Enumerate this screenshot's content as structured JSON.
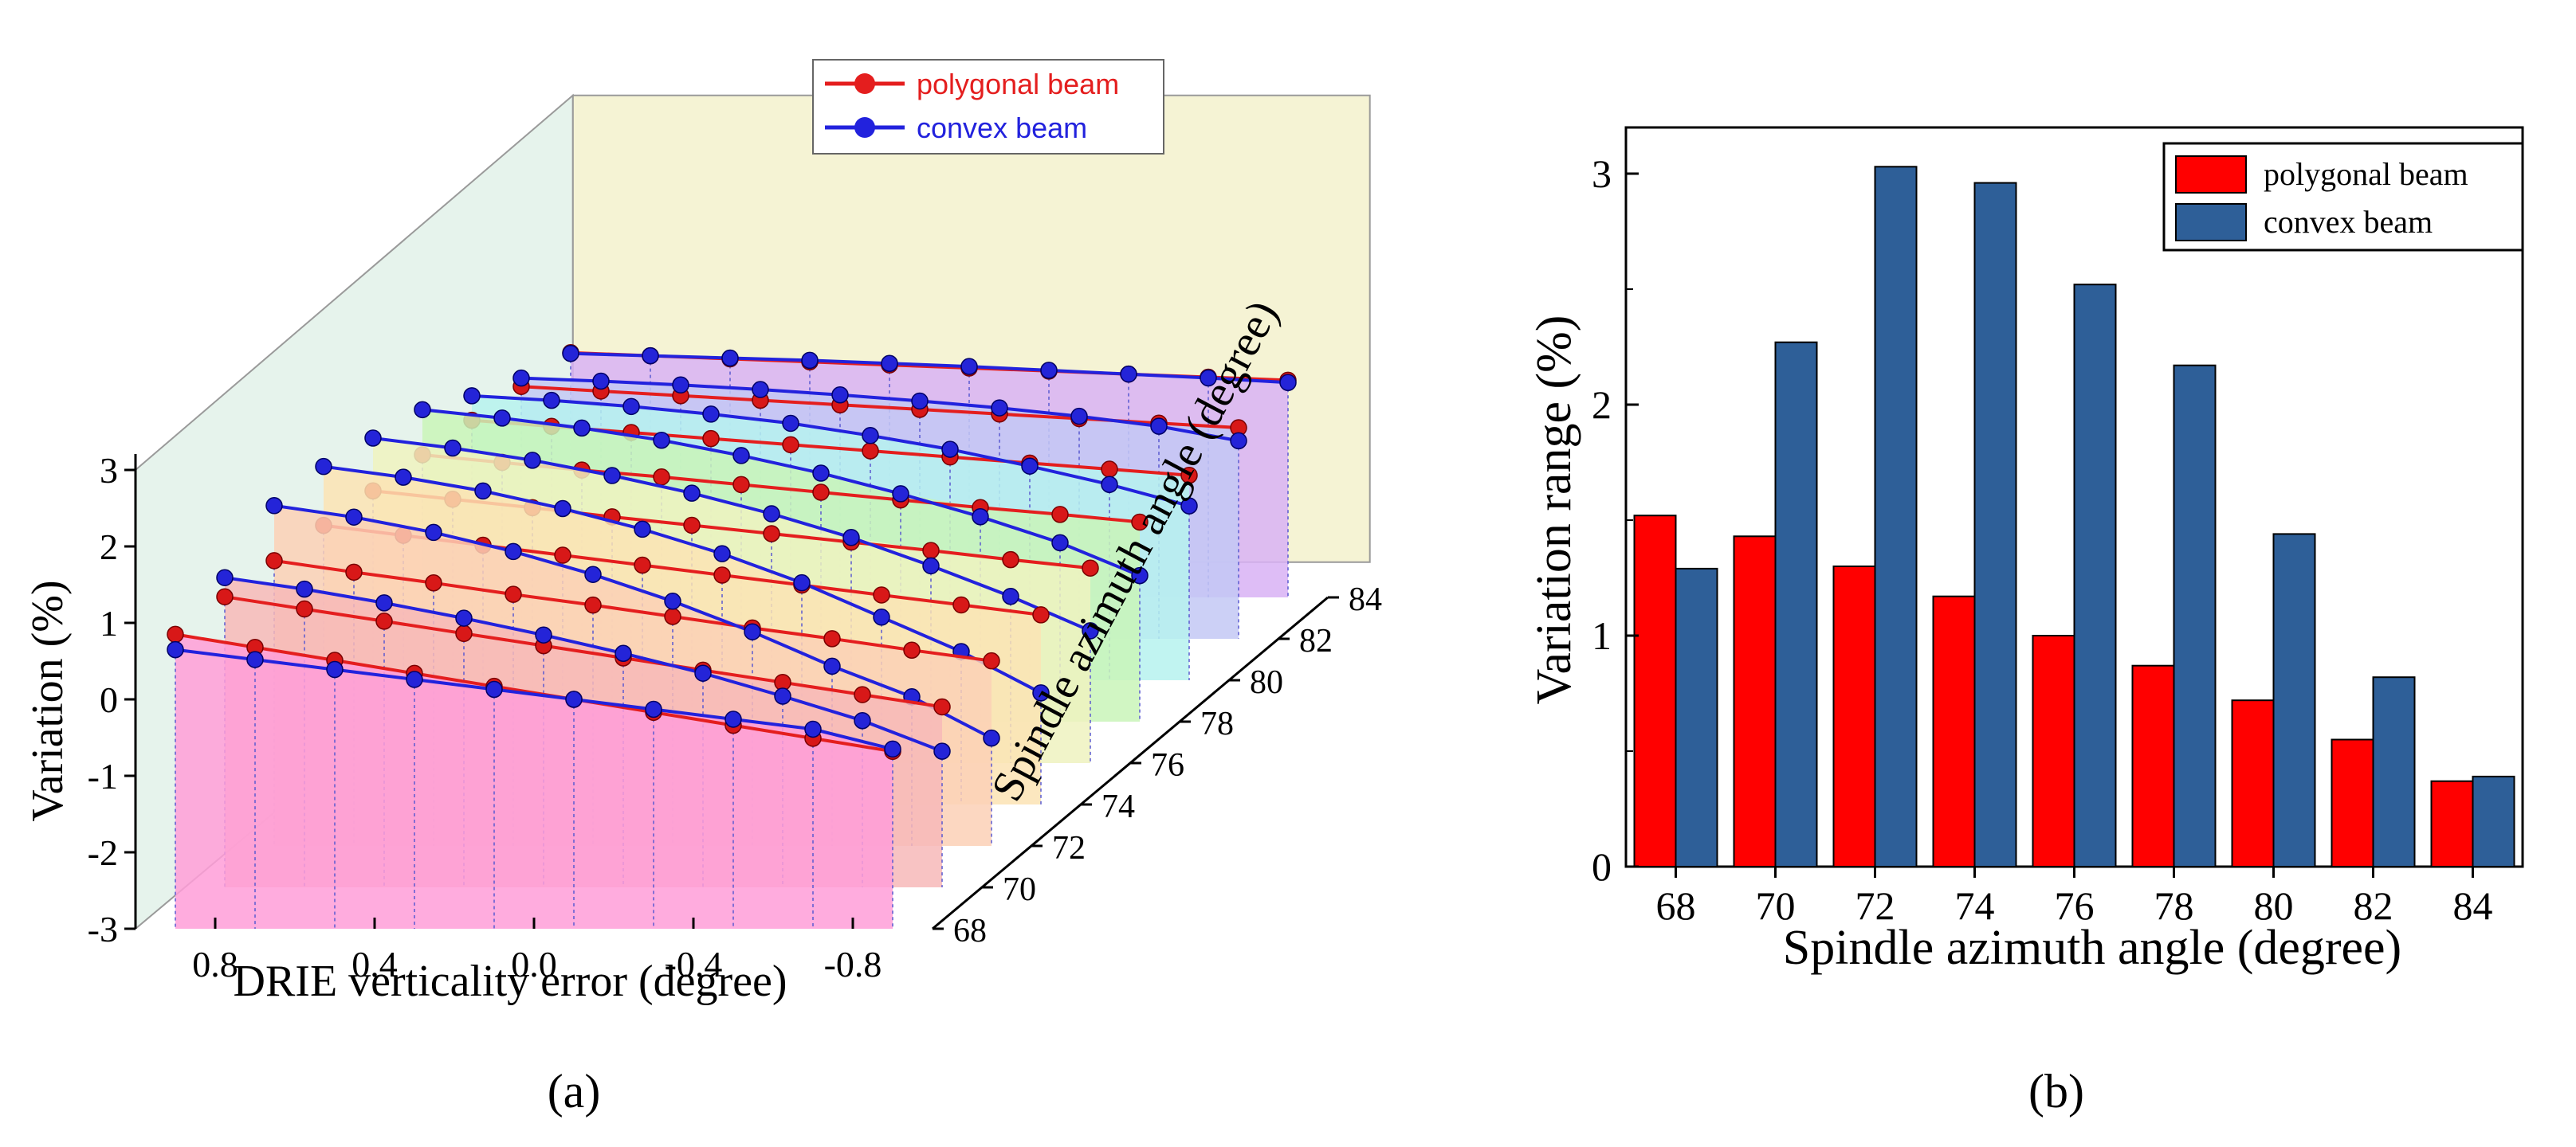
{
  "figure": {
    "panel_a_caption": "(a)",
    "panel_b_caption": "(b)"
  },
  "chart_data": [
    {
      "type": "line",
      "panel": "a",
      "title": "",
      "xlabel": "DRIE verticality error (degree)",
      "ylabel": "Variation (%)",
      "zlabel": "Spindle azimuth angle (degree)",
      "x_ticks": [
        "0.8",
        "0.4",
        "0.0",
        "-0.4",
        "-0.8"
      ],
      "y_ticks": [
        "-3",
        "-2",
        "-1",
        "0",
        "1",
        "2",
        "3"
      ],
      "z_ticks": [
        "68",
        "70",
        "72",
        "74",
        "76",
        "78",
        "80",
        "82",
        "84"
      ],
      "xlim": [
        1.0,
        -1.0
      ],
      "ylim": [
        -3,
        3
      ],
      "x": [
        0.9,
        0.7,
        0.5,
        0.3,
        0.1,
        -0.1,
        -0.3,
        -0.5,
        -0.7,
        -0.9
      ],
      "legend": [
        "polygonal beam",
        "convex beam"
      ],
      "legend_colors": [
        "#e41e1e",
        "#2222dd"
      ],
      "slice_fill_colors": [
        "#ff9ed8",
        "#f7b9b9",
        "#fbd0b6",
        "#fbe3b4",
        "#eef2c0",
        "#c9f5b8",
        "#b6f2ef",
        "#c3c8f5",
        "#d8b2f5"
      ],
      "slices": [
        {
          "angle": 68,
          "polygonal": [
            0.85,
            0.68,
            0.51,
            0.34,
            0.17,
            0.0,
            -0.17,
            -0.34,
            -0.51,
            -0.68
          ],
          "convex": [
            0.65,
            0.52,
            0.39,
            0.26,
            0.13,
            0.0,
            -0.13,
            -0.26,
            -0.39,
            -0.65
          ]
        },
        {
          "angle": 70,
          "polygonal": [
            0.8,
            0.64,
            0.48,
            0.32,
            0.16,
            0.0,
            -0.16,
            -0.32,
            -0.48,
            -0.64
          ],
          "convex": [
            1.05,
            0.9,
            0.72,
            0.52,
            0.3,
            0.06,
            -0.2,
            -0.5,
            -0.82,
            -1.22
          ]
        },
        {
          "angle": 72,
          "polygonal": [
            0.73,
            0.58,
            0.44,
            0.29,
            0.15,
            0.0,
            -0.15,
            -0.29,
            -0.44,
            -0.58
          ],
          "convex": [
            1.45,
            1.3,
            1.1,
            0.85,
            0.55,
            0.2,
            -0.2,
            -0.65,
            -1.05,
            -1.59
          ]
        },
        {
          "angle": 74,
          "polygonal": [
            0.65,
            0.52,
            0.39,
            0.26,
            0.13,
            0.0,
            -0.13,
            -0.26,
            -0.39,
            -0.52
          ],
          "convex": [
            1.42,
            1.28,
            1.1,
            0.87,
            0.6,
            0.28,
            -0.1,
            -0.55,
            -1.0,
            -1.54
          ]
        },
        {
          "angle": 76,
          "polygonal": [
            0.56,
            0.45,
            0.34,
            0.22,
            0.11,
            0.0,
            -0.11,
            -0.22,
            -0.34,
            -0.45
          ],
          "convex": [
            1.25,
            1.12,
            0.96,
            0.76,
            0.53,
            0.26,
            -0.05,
            -0.42,
            -0.82,
            -1.27
          ]
        },
        {
          "angle": 78,
          "polygonal": [
            0.49,
            0.39,
            0.29,
            0.2,
            0.1,
            0.0,
            -0.1,
            -0.2,
            -0.29,
            -0.39
          ],
          "convex": [
            1.08,
            0.97,
            0.84,
            0.68,
            0.48,
            0.25,
            -0.02,
            -0.32,
            -0.66,
            -1.09
          ]
        },
        {
          "angle": 80,
          "polygonal": [
            0.4,
            0.32,
            0.24,
            0.16,
            0.08,
            0.0,
            -0.08,
            -0.16,
            -0.24,
            -0.32
          ],
          "convex": [
            0.72,
            0.66,
            0.58,
            0.48,
            0.36,
            0.2,
            0.02,
            -0.2,
            -0.44,
            -0.72
          ]
        },
        {
          "angle": 82,
          "polygonal": [
            0.3,
            0.24,
            0.18,
            0.12,
            0.06,
            0.0,
            -0.06,
            -0.12,
            -0.18,
            -0.24
          ],
          "convex": [
            0.41,
            0.37,
            0.32,
            0.26,
            0.19,
            0.11,
            0.02,
            -0.09,
            -0.22,
            -0.41
          ]
        },
        {
          "angle": 84,
          "polygonal": [
            0.2,
            0.16,
            0.12,
            0.08,
            0.04,
            0.0,
            -0.04,
            -0.08,
            -0.12,
            -0.16
          ],
          "convex": [
            0.19,
            0.16,
            0.13,
            0.1,
            0.06,
            0.02,
            -0.03,
            -0.08,
            -0.13,
            -0.19
          ]
        }
      ]
    },
    {
      "type": "bar",
      "panel": "b",
      "title": "",
      "xlabel": "Spindle azimuth angle (degree)",
      "ylabel": "Variation range (%)",
      "categories": [
        "68",
        "70",
        "72",
        "74",
        "76",
        "78",
        "80",
        "82",
        "84"
      ],
      "ylim": [
        0,
        3.2
      ],
      "y_ticks": [
        "0",
        "1",
        "2",
        "3"
      ],
      "legend_position": "top-right",
      "series": [
        {
          "name": "polygonal beam",
          "color": "#ff0000",
          "values": [
            1.52,
            1.43,
            1.3,
            1.17,
            1.0,
            0.87,
            0.72,
            0.55,
            0.37
          ]
        },
        {
          "name": "convex beam",
          "color": "#2e5f98",
          "values": [
            1.29,
            2.27,
            3.03,
            2.96,
            2.52,
            2.17,
            1.44,
            0.82,
            0.39
          ]
        }
      ]
    }
  ]
}
